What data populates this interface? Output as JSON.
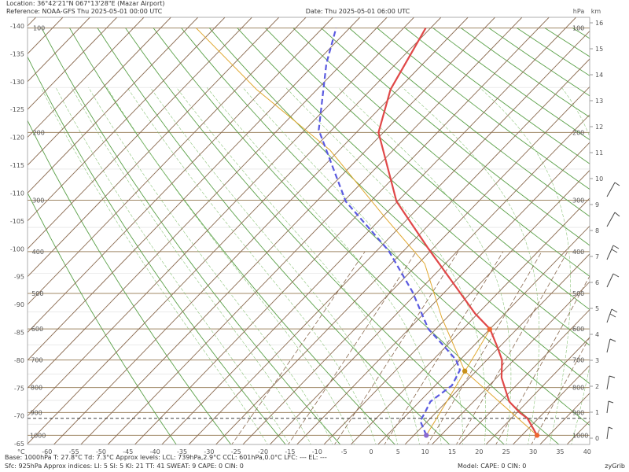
{
  "header": {
    "location": "Location:  36°42'21\"N  067°13'28\"E (Mazar Airport)",
    "reference": "Reference: NOAA-GFS Thu 2025-05-01 00:00 UTC",
    "date": "Date: Thu 2025-05-01 06:00 UTC",
    "pressure_unit": "hPa",
    "height_unit": "km"
  },
  "temperature_axis": {
    "unit": "°C",
    "bottom_ticks": [
      -60,
      -55,
      -50,
      -45,
      -40,
      -35,
      -30,
      -25,
      -20,
      -15,
      -10,
      -5,
      0,
      5,
      10,
      15,
      20,
      25,
      30,
      35,
      40
    ],
    "left_ticks": [
      -140,
      -135,
      -130,
      -125,
      -120,
      -115,
      -110,
      -105,
      -100,
      -95,
      -90,
      -85,
      -80,
      -75,
      -70,
      -65
    ]
  },
  "pressure_levels": [
    100,
    200,
    300,
    400,
    500,
    600,
    700,
    800,
    900,
    1000
  ],
  "height_ticks": [
    0,
    1,
    2,
    3,
    4,
    5,
    6,
    7,
    8,
    9,
    10,
    11,
    12,
    13,
    14,
    15,
    16
  ],
  "sounding": {
    "temperature": {
      "pressure": [
        1000,
        925,
        900,
        855,
        763,
        700,
        654,
        600,
        555,
        495,
        393,
        302,
        200,
        152,
        100
      ],
      "values": [
        27.8,
        23,
        20.5,
        16.6,
        10.9,
        7.8,
        4.4,
        0.0,
        -5.5,
        -12.4,
        -25.9,
        -40.2,
        -55.9,
        -61.4,
        -65.9
      ],
      "color": "#e04848"
    },
    "dewpoint": {
      "pressure": [
        1000,
        936,
        902,
        855,
        792,
        735,
        700,
        654,
        600,
        495,
        398,
        302,
        197,
        128,
        100
      ],
      "values": [
        7.3,
        3.6,
        3.0,
        2.0,
        3.1,
        1.8,
        -0.7,
        -5.4,
        -11.4,
        -21.1,
        -32.8,
        -49.6,
        -67.4,
        -77.9,
        -82.5
      ],
      "color": "#5a5ae0"
    },
    "parcel": {
      "pressure": [
        1000,
        739,
        566,
        427,
        330,
        223,
        152,
        100
      ],
      "values": [
        27.8,
        2.9,
        -11.0,
        -23.8,
        -39.6,
        -61.7,
        -86.2,
        -108.4
      ],
      "color": "#e0a830"
    },
    "surface_pressure": 925,
    "base": {
      "pressure": 1000,
      "temperature": 27.8,
      "dewpoint": 7.3
    },
    "lcl": {
      "pressure": 739,
      "temperature": 2.9
    },
    "ccl": {
      "pressure": 601,
      "temperature": 0.0
    }
  },
  "footer": {
    "line1": "Base: 1000hPa  T: 27.8°C  Td: 7.3°C      Approx levels:  LCL: 739hPa,2.9°C     CCL: 601hPa,0.0°C     LFC: ---     EL: ---",
    "line2": "Sfc: 925hPa        Approx indices:  LI: 5   SI: 5   KI: 21   TT: 41   SWEAT: 9      CAPE: 0  CIN: 0",
    "model": "Model: CAPE: 0 CIN: 0",
    "brand": "zyGrib"
  }
}
